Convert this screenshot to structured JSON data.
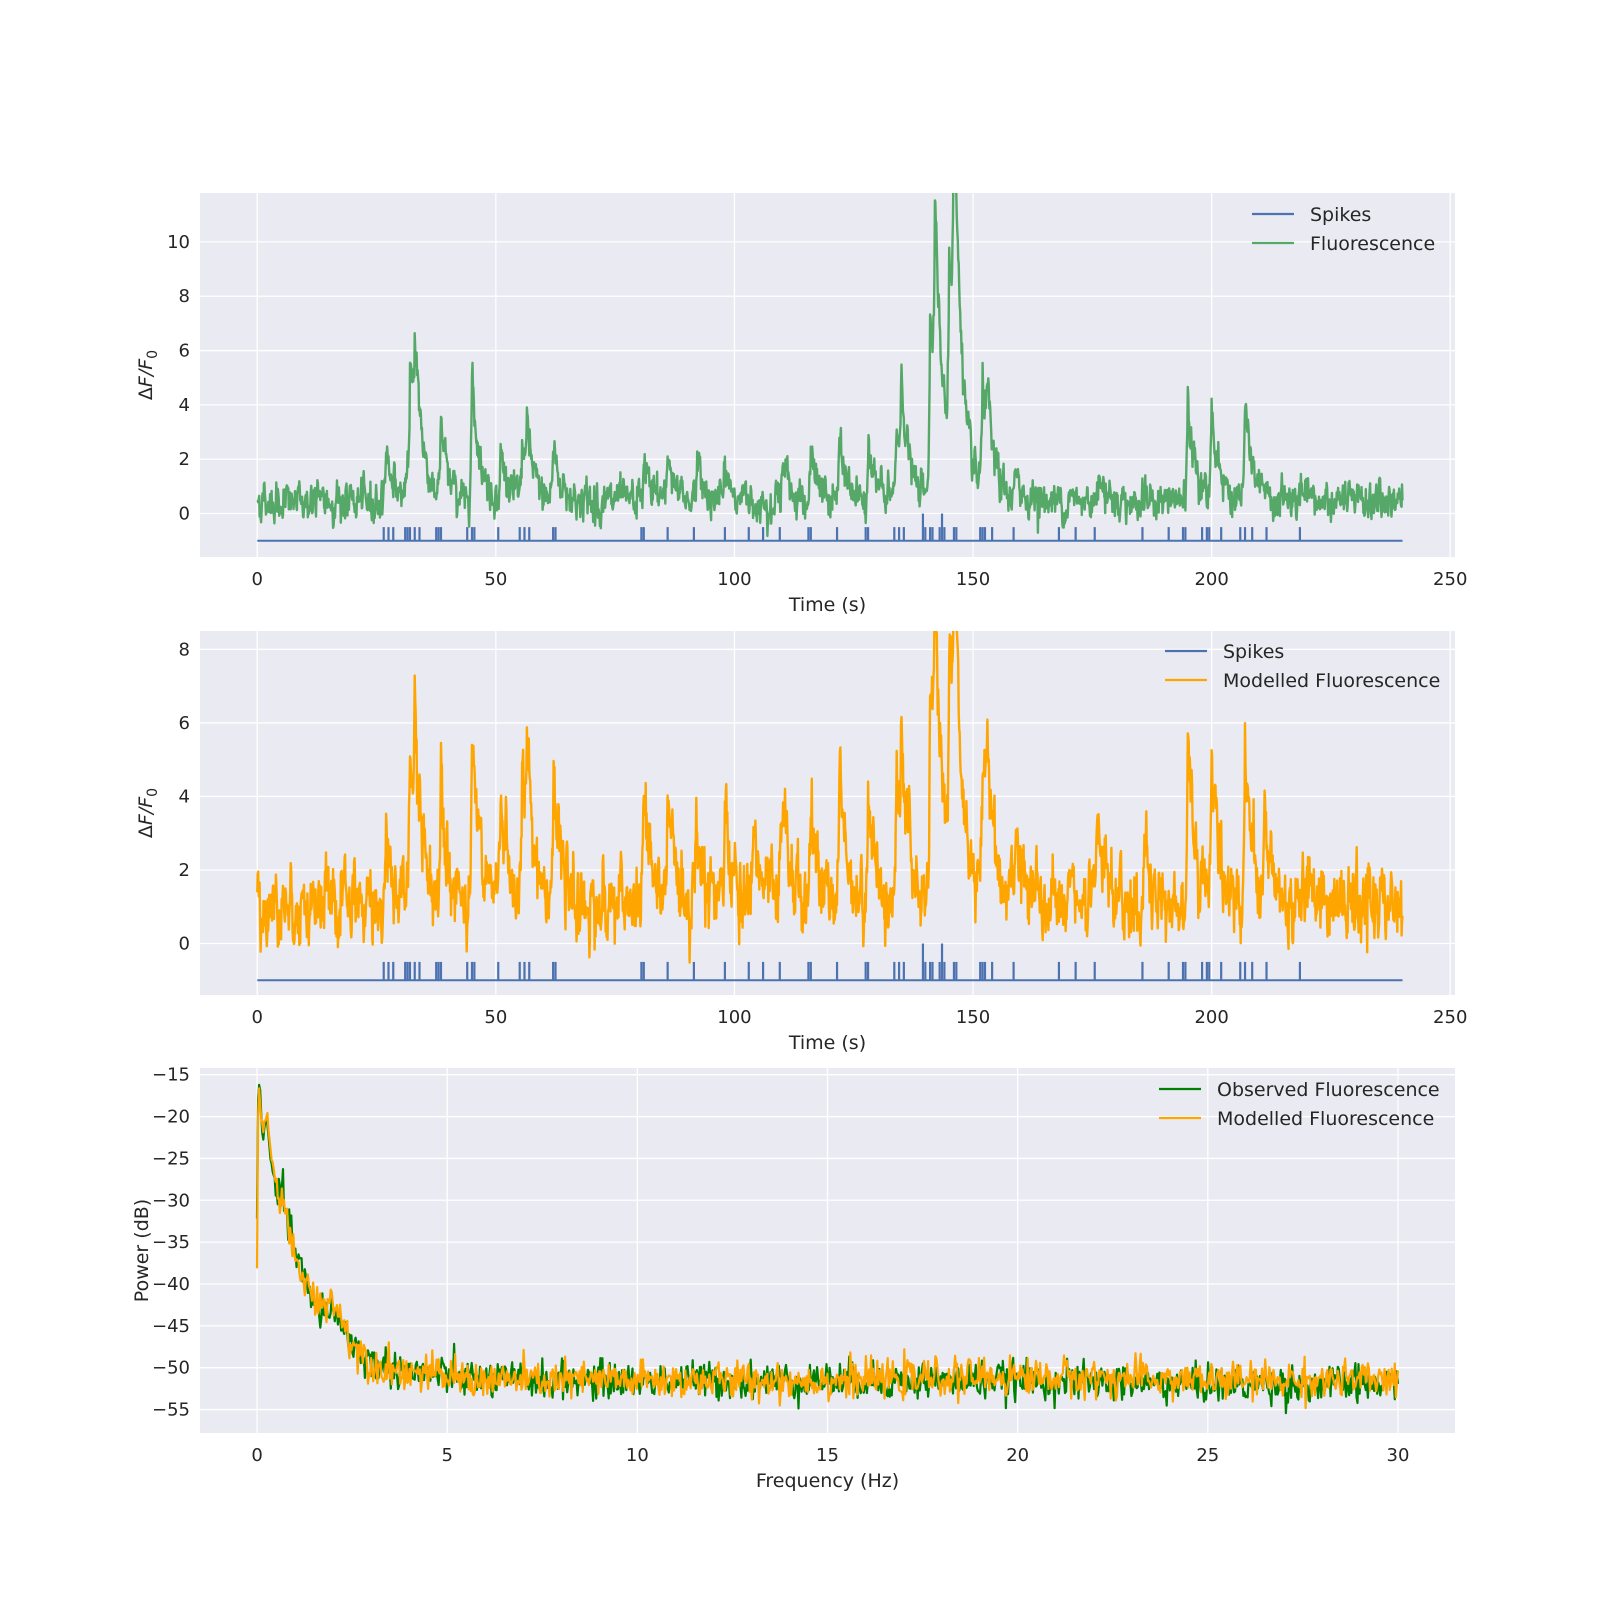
{
  "chart_data": [
    {
      "type": "line",
      "xlabel": "Time (s)",
      "ylabel": "ΔF/F",
      "ylabel_subscript": "0",
      "xlim": [
        -12,
        251
      ],
      "ylim": [
        -1.6,
        11.8
      ],
      "xticks": [
        "0",
        "50",
        "100",
        "150",
        "200",
        "250"
      ],
      "xtick_values": [
        0,
        50,
        100,
        150,
        200,
        250
      ],
      "yticks": [
        "0",
        "2",
        "4",
        "6",
        "8",
        "10"
      ],
      "ytick_values": [
        0,
        2,
        4,
        6,
        8,
        10
      ],
      "grid": true,
      "legend_placement": "top-right",
      "baseline": 0.45,
      "noise": 0.28,
      "series": [
        {
          "name": "Spikes",
          "color": "#4c72b0",
          "kind": "spikes",
          "offset": -1.0,
          "height": 0.5
        },
        {
          "name": "Fluorescence",
          "color": "#55a868",
          "kind": "trace",
          "peaks": [
            [
              27,
              2.0
            ],
            [
              32,
              5.0
            ],
            [
              33,
              3.8
            ],
            [
              38.5,
              2.5
            ],
            [
              45,
              4.6
            ],
            [
              51,
              1.6
            ],
            [
              55.5,
              2.0
            ],
            [
              56.5,
              1.6
            ],
            [
              62,
              1.9
            ],
            [
              81,
              1.4
            ],
            [
              86,
              1.8
            ],
            [
              92,
              1.4
            ],
            [
              98,
              1.1
            ],
            [
              110,
              1.6
            ],
            [
              116,
              1.5
            ],
            [
              122,
              2.0
            ],
            [
              128,
              2.0
            ],
            [
              134,
              2.6
            ],
            [
              135,
              3.2
            ],
            [
              141,
              6.6
            ],
            [
              142,
              8.3
            ],
            [
              145,
              7.6
            ],
            [
              146,
              10.6
            ],
            [
              152,
              4.0
            ],
            [
              153,
              1.8
            ],
            [
              159,
              0.8
            ],
            [
              176,
              1.2
            ],
            [
              195,
              3.4
            ],
            [
              200,
              3.3
            ],
            [
              207,
              3.4
            ]
          ]
        }
      ]
    },
    {
      "type": "line",
      "xlabel": "Time (s)",
      "ylabel": "ΔF/F",
      "ylabel_subscript": "0",
      "xlim": [
        -12,
        251
      ],
      "ylim": [
        -1.4,
        8.5
      ],
      "xticks": [
        "0",
        "50",
        "100",
        "150",
        "200",
        "250"
      ],
      "xtick_values": [
        0,
        50,
        100,
        150,
        200,
        250
      ],
      "yticks": [
        "0",
        "2",
        "4",
        "6",
        "8"
      ],
      "ytick_values": [
        0,
        2,
        4,
        6,
        8
      ],
      "grid": true,
      "legend_placement": "top-right",
      "baseline": 1.05,
      "noise": 0.4,
      "series": [
        {
          "name": "Spikes",
          "color": "#4c72b0",
          "kind": "spikes",
          "offset": -1.0,
          "height": 0.5
        },
        {
          "name": "Modelled Fluorescence",
          "color": "#ffa500",
          "kind": "trace",
          "peaks": [
            [
              27,
              1.8
            ],
            [
              32,
              4.2
            ],
            [
              33,
              3.0
            ],
            [
              38.5,
              3.6
            ],
            [
              45,
              4.6
            ],
            [
              51,
              2.9
            ],
            [
              55.5,
              3.2
            ],
            [
              56.5,
              2.6
            ],
            [
              62,
              3.0
            ],
            [
              81,
              3.0
            ],
            [
              86,
              2.6
            ],
            [
              92,
              2.6
            ],
            [
              98,
              2.4
            ],
            [
              104,
              2.2
            ],
            [
              110,
              3.2
            ],
            [
              116,
              2.6
            ],
            [
              122,
              3.6
            ],
            [
              128,
              2.8
            ],
            [
              134,
              3.4
            ],
            [
              135,
              3.0
            ],
            [
              141,
              5.8
            ],
            [
              142,
              6.0
            ],
            [
              145,
              5.8
            ],
            [
              146,
              6.6
            ],
            [
              152,
              4.0
            ],
            [
              153,
              2.4
            ],
            [
              159,
              1.8
            ],
            [
              176,
              2.2
            ],
            [
              186,
              1.6
            ],
            [
              195,
              4.6
            ],
            [
              200,
              4.0
            ],
            [
              207,
              4.4
            ],
            [
              211,
              2.0
            ],
            [
              219,
              1.2
            ]
          ]
        }
      ]
    },
    {
      "type": "line",
      "xlabel": "Frequency (Hz)",
      "ylabel": "Power (dB)",
      "xlim": [
        -1.5,
        31.5
      ],
      "ylim": [
        -57.8,
        -14.2
      ],
      "xticks": [
        "0",
        "5",
        "10",
        "15",
        "20",
        "25",
        "30"
      ],
      "xtick_values": [
        0,
        5,
        10,
        15,
        20,
        25,
        30
      ],
      "yticks": [
        "−15",
        "−20",
        "−25",
        "−30",
        "−35",
        "−40",
        "−45",
        "−50",
        "−55"
      ],
      "ytick_values": [
        -15,
        -20,
        -25,
        -30,
        -35,
        -40,
        -45,
        -50,
        -55
      ],
      "grid": true,
      "legend_placement": "top-right",
      "series": [
        {
          "name": "Observed Fluorescence",
          "color": "#008000",
          "anchors": [
            [
              0,
              -31
            ],
            [
              0.03,
              -17
            ],
            [
              0.06,
              -16.2
            ],
            [
              0.15,
              -23
            ],
            [
              0.25,
              -20
            ],
            [
              0.35,
              -25
            ],
            [
              0.5,
              -29
            ],
            [
              0.7,
              -30
            ],
            [
              1.0,
              -36
            ],
            [
              1.5,
              -43
            ],
            [
              2.0,
              -43
            ],
            [
              2.5,
              -47
            ],
            [
              3.0,
              -49.5
            ],
            [
              4.0,
              -50.5
            ],
            [
              6.0,
              -51.5
            ],
            [
              10.0,
              -51.5
            ],
            [
              15.0,
              -51.5
            ],
            [
              20.0,
              -51.5
            ],
            [
              25.0,
              -52
            ],
            [
              30.0,
              -52
            ]
          ]
        },
        {
          "name": "Modelled Fluorescence",
          "color": "#ffa500",
          "anchors": [
            [
              0,
              -37
            ],
            [
              0.03,
              -18
            ],
            [
              0.06,
              -17
            ],
            [
              0.15,
              -22
            ],
            [
              0.25,
              -19.5
            ],
            [
              0.35,
              -24
            ],
            [
              0.5,
              -28
            ],
            [
              0.7,
              -31
            ],
            [
              1.0,
              -37
            ],
            [
              1.5,
              -42
            ],
            [
              2.0,
              -42
            ],
            [
              2.5,
              -47
            ],
            [
              3.0,
              -49.5
            ],
            [
              4.0,
              -50.5
            ],
            [
              6.0,
              -51.5
            ],
            [
              10.0,
              -51.5
            ],
            [
              15.0,
              -51.5
            ],
            [
              20.0,
              -51
            ],
            [
              25.0,
              -51.5
            ],
            [
              30.0,
              -51.5
            ]
          ]
        }
      ]
    }
  ],
  "spike_times": [
    26.5,
    27.5,
    28.5,
    31,
    31.5,
    32,
    33,
    34,
    37.5,
    38,
    38.5,
    44,
    45,
    45.5,
    50.5,
    55,
    56,
    57,
    62,
    62.5,
    80.5,
    81,
    86,
    91.5,
    98,
    103,
    106,
    109.5,
    115.5,
    116,
    121.5,
    127.5,
    128,
    133.5,
    134.5,
    135.5,
    139.5,
    140,
    141,
    141.5,
    143,
    143.5,
    144,
    146,
    146.5,
    151.5,
    152,
    152.5,
    154,
    158.5,
    168,
    171.5,
    175.5,
    185.5,
    191,
    194,
    194.5,
    198,
    199,
    199.5,
    202,
    206,
    207,
    208.5,
    211.5,
    218.5
  ],
  "spike_big": [
    139.5,
    143.5
  ]
}
